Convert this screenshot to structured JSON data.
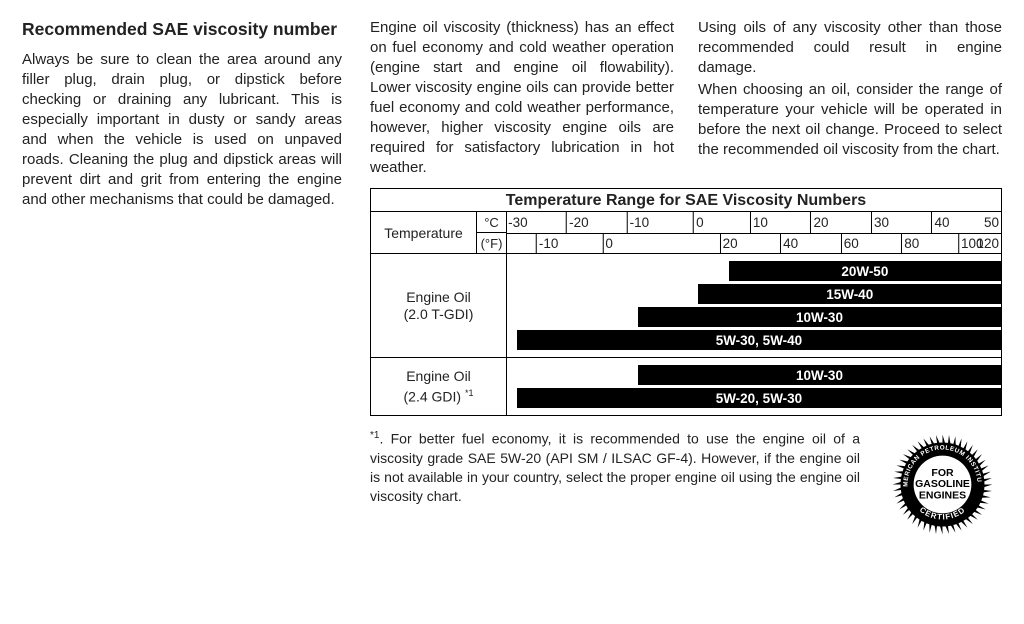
{
  "left": {
    "heading": "Recommended SAE viscosity number",
    "body": "Always be sure to clean the area around any filler plug, drain plug, or dipstick before checking or draining any lubricant. This is especially important in dusty or sandy areas and when the vehicle is used on unpaved roads. Cleaning the plug and dipstick areas will prevent dirt and grit from entering the engine and other mechanisms that could be damaged."
  },
  "intro": {
    "c1": "Engine oil viscosity (thickness) has an effect on fuel economy and cold weather operation (engine start and engine oil flowability). Lower viscosity engine oils can provide better fuel economy and cold weather performance, however, higher viscosity engine oils are required for satisfactory lubrication in hot weather.",
    "c2a": "Using oils of any viscosity other than those recommended could result in engine damage.",
    "c2b": "When choosing an oil, consider the range of temperature your vehicle will be operated in before the next oil change. Proceed to select the recommended oil viscosity from the chart."
  },
  "chart": {
    "title": "Temperature Range for SAE Viscosity Numbers",
    "temp_label": "Temperature",
    "unit_c": "°C",
    "unit_f": "(°F)",
    "c_positions_pct": [
      2,
      14.25,
      26.5,
      38.75,
      51,
      63.25,
      75.5,
      87.75,
      100
    ],
    "c_labels": [
      "-30",
      "-20",
      "-10",
      "0",
      "10",
      "20",
      "30",
      "40",
      "50"
    ],
    "f_positions_pct": [
      8.125,
      20.375,
      44.875,
      57.125,
      69.375,
      81.625,
      93.875
    ],
    "f_labels": [
      "-10",
      "0",
      "20",
      "40",
      "60",
      "80",
      "100"
    ],
    "f_last_label": "120",
    "sections": [
      {
        "label_line1": "Engine Oil",
        "label_line2": "(2.0 T-GDI)",
        "footmark": "",
        "bars": [
          {
            "start_pct": 44.875,
            "text": "20W-50"
          },
          {
            "start_pct": 38.75,
            "text": "15W-40"
          },
          {
            "start_pct": 26.5,
            "text": "10W-30"
          },
          {
            "start_pct": 2,
            "text": "5W-30, 5W-40"
          }
        ]
      },
      {
        "label_line1": "Engine Oil",
        "label_line2": "(2.4 GDI) ",
        "footmark": "*1",
        "bars": [
          {
            "start_pct": 26.5,
            "text": "10W-30"
          },
          {
            "start_pct": 2,
            "text": "5W-20, 5W-30"
          }
        ]
      }
    ]
  },
  "footnote": {
    "marker": "*1",
    "text": ". For better fuel economy, it is recommended to use the engine oil of a viscosity grade SAE 5W-20 (API SM / ILSAC GF-4). However, if the engine oil is not available in your country, select the proper engine oil using the engine oil viscosity chart."
  },
  "seal": {
    "outer_text_top": "AMERICAN PETROLEUM INSTITUTE",
    "outer_text_bottom": "CERTIFIED",
    "center_line1": "FOR",
    "center_line2": "GASOLINE",
    "center_line3": "ENGINES"
  }
}
